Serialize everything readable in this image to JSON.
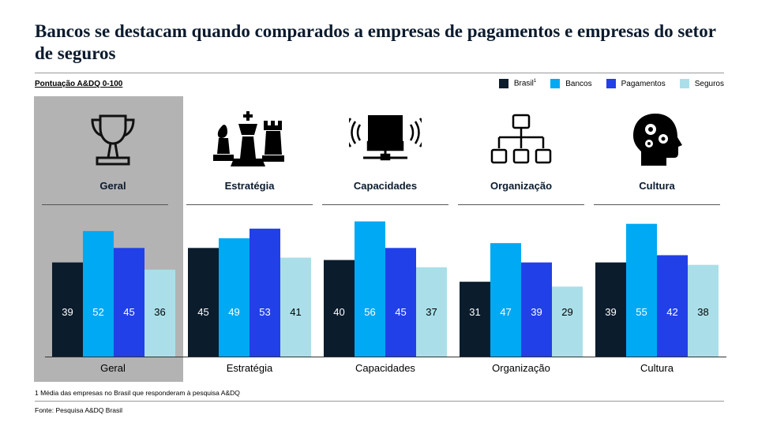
{
  "title": "Bancos se destacam quando comparados a empresas de pagamentos e empresas do setor de seguros",
  "subtitle": "Pontuação A&DQ 0-100",
  "footnote": "1 Média das empresas no Brasil que responderam à pesquisa A&DQ",
  "source": "Fonte: Pesquisa A&DQ Brasil",
  "icons": [
    "trophy-icon",
    "chess-pieces-icon",
    "computer-signal-icon",
    "org-chart-icon",
    "head-gears-icon"
  ],
  "chart_data": {
    "type": "bar",
    "categories": [
      "Geral",
      "Estratégia",
      "Capacidades",
      "Organização",
      "Cultura"
    ],
    "highlighted_category": "Geral",
    "ylim": [
      0,
      100
    ],
    "grid": false,
    "legend_placement": "top-right",
    "series": [
      {
        "name": "Brasil",
        "name_sup": "1",
        "color": "#0b1c2d",
        "values": [
          39,
          45,
          40,
          31,
          39
        ]
      },
      {
        "name": "Bancos",
        "color": "#00a9f4",
        "values": [
          52,
          49,
          56,
          47,
          55
        ]
      },
      {
        "name": "Pagamentos",
        "color": "#2140e8",
        "values": [
          45,
          53,
          45,
          39,
          42
        ]
      },
      {
        "name": "Seguros",
        "color": "#aadfe9",
        "values": [
          36,
          41,
          37,
          29,
          38
        ]
      }
    ]
  }
}
